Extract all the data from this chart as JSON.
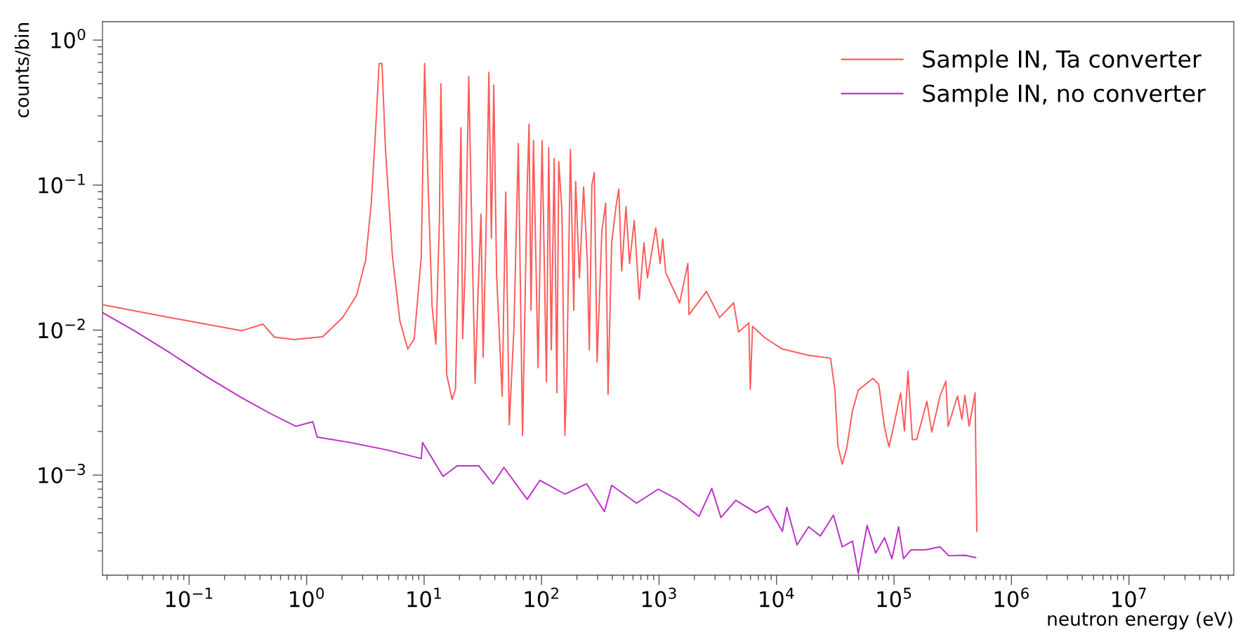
{
  "chart_data": {
    "type": "line",
    "xlabel": "neutron energy (eV)",
    "ylabel": "counts/bin",
    "log": "xy",
    "grid": false,
    "legend": "top right",
    "marker": "none",
    "line_style": "solid",
    "xlim": [
      0.0183,
      78000000
    ],
    "ylim": [
      0.000204,
      1.34
    ],
    "xticks": [
      {
        "value": 0.1,
        "label": "10$^{−1}$"
      },
      {
        "value": 1,
        "label": "10$^{0}$"
      },
      {
        "value": 10,
        "label": "10$^{1}$"
      },
      {
        "value": 100,
        "label": "10$^{2}$"
      },
      {
        "value": 1000,
        "label": "10$^{3}$"
      },
      {
        "value": 10000,
        "label": "10$^{4}$"
      },
      {
        "value": 100000,
        "label": "10$^{5}$"
      },
      {
        "value": 1000000,
        "label": "10$^{6}$"
      },
      {
        "value": 10000000,
        "label": "10$^{7}$"
      }
    ],
    "yticks": [
      {
        "value": 0.001,
        "label": "10$^{−3}$"
      },
      {
        "value": 0.01,
        "label": "10$^{−2}$"
      },
      {
        "value": 0.1,
        "label": "10$^{−1}$"
      },
      {
        "value": 1,
        "label": "10$^{0}$"
      }
    ],
    "series": [
      {
        "name": "Sample IN, Ta converter",
        "color": "#ff5a5a",
        "x": [
          0.0188,
          0.069,
          0.281,
          0.424,
          0.531,
          0.78,
          1.37,
          2.02,
          2.66,
          3.18,
          3.55,
          3.86,
          4.14,
          4.38,
          4.69,
          5.38,
          6.22,
          7.26,
          8.24,
          9.46,
          10.1,
          10.7,
          11.7,
          12.6,
          13.5,
          13.9,
          14.5,
          15.6,
          17.3,
          18.5,
          19.6,
          20.6,
          21.3,
          22.4,
          24.0,
          25.4,
          27.2,
          28.8,
          30.5,
          31.8,
          33.6,
          35.6,
          37.4,
          39.2,
          41.4,
          46.2,
          49.5,
          53.1,
          58.2,
          63.4,
          68.9,
          75.5,
          78.2,
          81.3,
          85.3,
          93.4,
          101,
          110,
          115,
          121,
          128,
          135,
          140,
          149,
          158,
          164,
          176,
          188,
          195,
          210,
          228,
          245,
          255,
          268,
          281,
          297,
          326,
          351,
          368,
          395,
          430,
          454,
          481,
          523,
          561,
          615,
          679,
          744,
          797,
          937,
          1021,
          1075,
          1138,
          1497,
          1758,
          1800,
          2536,
          3275,
          4315,
          4750,
          5810,
          5980,
          6250,
          7960,
          11220,
          18780,
          28840,
          31400,
          33270,
          36250,
          39540,
          44360,
          49660,
          66100,
          74150,
          83180,
          90600,
          98700,
          113800,
          122700,
          131500,
          143200,
          156000,
          190600,
          209900,
          246500,
          276300,
          289100,
          347400,
          378500,
          401000,
          436600,
          489800,
          507000
        ],
        "values": [
          0.0149,
          0.0122,
          0.0099,
          0.011,
          0.00895,
          0.0086,
          0.009,
          0.0122,
          0.0173,
          0.0304,
          0.075,
          0.234,
          0.69,
          0.69,
          0.176,
          0.032,
          0.0116,
          0.0074,
          0.0087,
          0.032,
          0.69,
          0.133,
          0.0145,
          0.008,
          0.057,
          0.5,
          0.067,
          0.0049,
          0.00333,
          0.0039,
          0.032,
          0.248,
          0.0087,
          0.0272,
          0.56,
          0.057,
          0.0043,
          0.018,
          0.063,
          0.0065,
          0.043,
          0.6,
          0.043,
          0.49,
          0.0242,
          0.0035,
          0.0895,
          0.00223,
          0.0103,
          0.193,
          0.00188,
          0.1,
          0.263,
          0.0137,
          0.203,
          0.0055,
          0.203,
          0.0044,
          0.181,
          0.0073,
          0.153,
          0.0037,
          0.145,
          0.067,
          0.00188,
          0.0049,
          0.176,
          0.0137,
          0.106,
          0.0229,
          0.097,
          0.0304,
          0.0073,
          0.1,
          0.122,
          0.006,
          0.048,
          0.075,
          0.0036,
          0.04,
          0.071,
          0.094,
          0.0256,
          0.071,
          0.0288,
          0.057,
          0.0163,
          0.04,
          0.0229,
          0.0507,
          0.0288,
          0.0425,
          0.025,
          0.0154,
          0.0288,
          0.0128,
          0.0185,
          0.0122,
          0.0154,
          0.0097,
          0.0112,
          0.0039,
          0.0106,
          0.00885,
          0.0074,
          0.0067,
          0.0064,
          0.00386,
          0.0016,
          0.00119,
          0.00153,
          0.00279,
          0.00386,
          0.00464,
          0.00423,
          0.00212,
          0.00157,
          0.00212,
          0.00368,
          0.00202,
          0.0052,
          0.00176,
          0.00176,
          0.00322,
          0.00198,
          0.00351,
          0.00444,
          0.00217,
          0.00351,
          0.00243,
          0.00355,
          0.00218,
          0.00368,
          0.00041
        ]
      },
      {
        "name": "Sample IN, no converter",
        "color": "#bb2ec9",
        "x": [
          0.0183,
          0.0341,
          0.069,
          0.139,
          0.281,
          0.495,
          0.81,
          1.13,
          1.23,
          2.32,
          4.69,
          9.46,
          9.7,
          14.5,
          19.1,
          29.2,
          38.6,
          47.8,
          75.5,
          96.6,
          158,
          242,
          343,
          395,
          643,
          986,
          1432,
          2193,
          2810,
          3365,
          4500,
          6700,
          8430,
          11220,
          12240,
          14930,
          18780,
          23600,
          30550,
          36250,
          44360,
          49660,
          59000,
          69800,
          83180,
          96000,
          109400,
          120600,
          139300,
          185300,
          246500,
          293000,
          401000,
          495500
        ],
        "values": [
          0.0132,
          0.0099,
          0.00695,
          0.0048,
          0.00341,
          0.00265,
          0.00217,
          0.00233,
          0.00183,
          0.00168,
          0.0015,
          0.0013,
          0.00168,
          0.00098,
          0.00116,
          0.00116,
          0.00087,
          0.00113,
          0.00068,
          0.00092,
          0.00074,
          0.00087,
          0.00056,
          0.00085,
          0.00064,
          0.0008,
          0.00068,
          0.00052,
          0.00081,
          0.00051,
          0.00067,
          0.00055,
          0.00061,
          0.00041,
          0.0006,
          0.00033,
          0.00044,
          0.00038,
          0.00053,
          0.00032,
          0.00035,
          0.00021,
          0.00045,
          0.00029,
          0.00037,
          0.000265,
          0.00044,
          0.000265,
          0.000305,
          0.000305,
          0.00032,
          0.000278,
          0.00028,
          0.00027
        ]
      }
    ]
  }
}
